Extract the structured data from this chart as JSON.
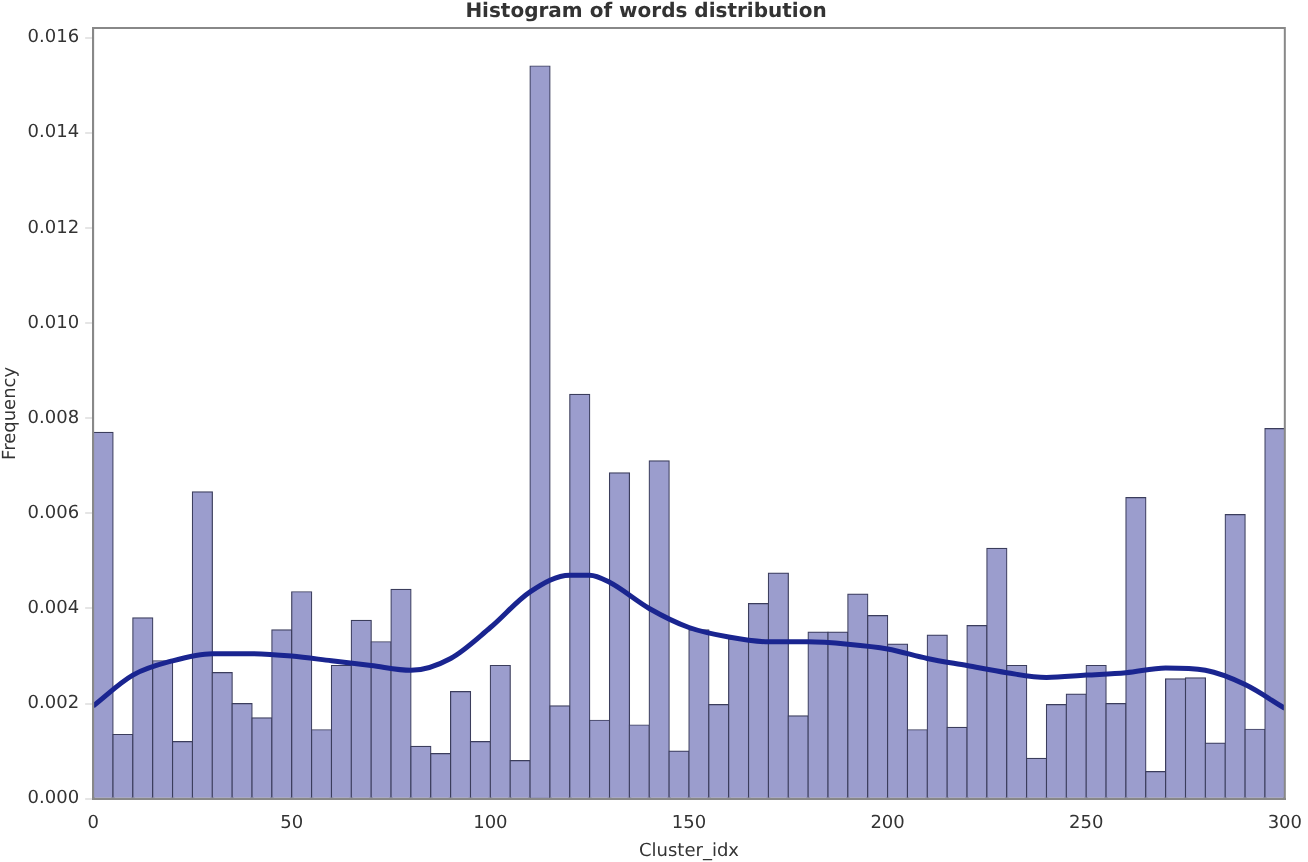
{
  "chart_data": {
    "type": "histogram",
    "title": "Histogram of words distribution",
    "xlabel": "Cluster_idx",
    "ylabel": "Frequency",
    "bins": [
      0,
      5,
      10,
      15,
      20,
      25,
      30,
      35,
      40,
      45,
      50,
      55,
      60,
      65,
      70,
      75,
      80,
      85,
      90,
      95,
      100,
      105,
      110,
      115,
      120,
      125,
      130,
      135,
      140,
      145,
      150,
      155,
      160,
      165,
      170,
      175,
      180,
      185,
      190,
      195,
      200,
      205,
      210,
      215,
      220,
      225,
      230,
      235,
      240,
      245,
      250,
      255,
      260,
      265,
      270,
      275,
      280,
      285,
      290,
      295,
      300
    ],
    "values": [
      0.0077,
      0.00135,
      0.0038,
      0.0029,
      0.0012,
      0.00645,
      0.00265,
      0.002,
      0.0017,
      0.00355,
      0.00435,
      0.00145,
      0.0028,
      0.00375,
      0.0033,
      0.0044,
      0.0011,
      0.00095,
      0.00225,
      0.0012,
      0.0028,
      0.0008,
      0.0154,
      0.00195,
      0.0085,
      0.00165,
      0.00685,
      0.00155,
      0.0071,
      0.001,
      0.00355,
      0.00198,
      0.00336,
      0.0041,
      0.00474,
      0.00174,
      0.0035,
      0.0035,
      0.0043,
      0.00385,
      0.00325,
      0.00145,
      0.00344,
      0.0015,
      0.00364,
      0.00526,
      0.0028,
      0.00085,
      0.00198,
      0.0022,
      0.0028,
      0.002,
      0.00633,
      0.00057,
      0.00252,
      0.00254,
      0.00117,
      0.00597,
      0.00146,
      0.00778
    ],
    "color": "#9b9dcd",
    "series": [
      {
        "type": "line",
        "color": "#1a2590",
        "x": [
          0,
          10,
          20,
          30,
          40,
          50,
          60,
          70,
          80,
          90,
          100,
          110,
          120,
          125,
          130,
          140,
          150,
          160,
          170,
          180,
          190,
          200,
          210,
          220,
          230,
          240,
          250,
          260,
          270,
          280,
          290,
          300
        ],
        "values": [
          0.00195,
          0.0026,
          0.0029,
          0.00305,
          0.00305,
          0.003,
          0.0029,
          0.0028,
          0.0027,
          0.00295,
          0.0036,
          0.00435,
          0.0047,
          0.0047,
          0.00455,
          0.004,
          0.0036,
          0.0034,
          0.0033,
          0.0033,
          0.00325,
          0.00315,
          0.00295,
          0.0028,
          0.00265,
          0.00255,
          0.0026,
          0.00265,
          0.00275,
          0.0027,
          0.0024,
          0.0019
        ]
      }
    ],
    "xlim": [
      0,
      300
    ],
    "xticks": [
      0,
      50,
      100,
      150,
      200,
      250,
      300
    ],
    "ylim": [
      0,
      0.0162
    ],
    "yticks": [
      {
        "value": 0,
        "label": "0.000"
      },
      0.002,
      0.004,
      0.006,
      0.008,
      {
        "value": 0.01,
        "label": "0.010"
      },
      0.012,
      0.014,
      0.016
    ],
    "grid": false,
    "legend": false
  }
}
